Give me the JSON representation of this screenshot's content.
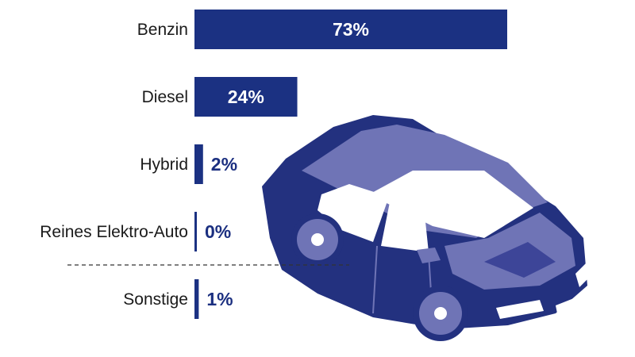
{
  "colors": {
    "bar": "#1b3182",
    "car_body": "#23317f",
    "car_light": "#6f74b6",
    "car_mid": "#3d4598",
    "car_window": "#ffffff"
  },
  "icons": [
    "car-illustration"
  ],
  "chart_data": {
    "type": "bar",
    "orientation": "horizontal",
    "categories": [
      "Benzin",
      "Diesel",
      "Hybrid",
      "Reines Elektro-Auto",
      "Sonstige"
    ],
    "values": [
      73,
      24,
      2,
      0,
      1
    ],
    "value_labels": [
      "73%",
      "24%",
      "2%",
      "0%",
      "1%"
    ],
    "unit": "%",
    "title": "",
    "xlabel": "",
    "ylabel": "",
    "xlim": [
      0,
      100
    ],
    "grid": false,
    "legend": "none",
    "separator_before_last": true
  }
}
